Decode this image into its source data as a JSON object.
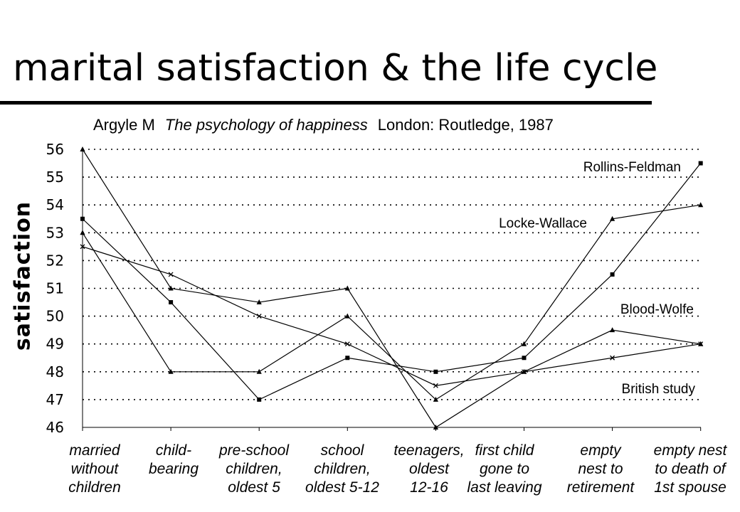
{
  "slide": {
    "title": "marital satisfaction & the life cycle",
    "subtitle_author": "Argyle M",
    "subtitle_book": "The psychology of happiness",
    "subtitle_publisher": "London: Routledge, 1987"
  },
  "chart_data": {
    "type": "line",
    "title": "marital satisfaction & the life cycle",
    "ylabel": "satisfaction",
    "xlabel": "",
    "ylim": [
      46,
      56
    ],
    "yticks": [
      46,
      47,
      48,
      49,
      50,
      51,
      52,
      53,
      54,
      55,
      56
    ],
    "grid": "horizontal dotted",
    "categories": [
      [
        "married",
        "without",
        "children"
      ],
      [
        "child-",
        "bearing"
      ],
      [
        "pre-school",
        "children,",
        "oldest 5"
      ],
      [
        "school",
        "children,",
        "oldest 5-12"
      ],
      [
        "teenagers,",
        "oldest",
        "12-16"
      ],
      [
        "first child",
        "gone to",
        "last leaving"
      ],
      [
        "empty",
        "nest to",
        "retirement"
      ],
      [
        "empty nest",
        "to death of",
        "1st spouse"
      ]
    ],
    "series": [
      {
        "name": "Rollins-Feldman",
        "marker": "square",
        "values": [
          53.5,
          50.5,
          47,
          48.5,
          48,
          48.5,
          51.5,
          55.5
        ]
      },
      {
        "name": "Locke-Wallace",
        "marker": "triangle",
        "values": [
          53,
          48,
          48,
          50,
          47,
          49,
          53.5,
          54
        ]
      },
      {
        "name": "Blood-Wolfe",
        "marker": "triangle",
        "values": [
          56,
          51,
          50.5,
          51,
          46,
          48,
          49.5,
          49
        ]
      },
      {
        "name": "British study",
        "marker": "x",
        "values": [
          52.5,
          51.5,
          50,
          49,
          47.5,
          48,
          48.5,
          49
        ]
      }
    ]
  }
}
